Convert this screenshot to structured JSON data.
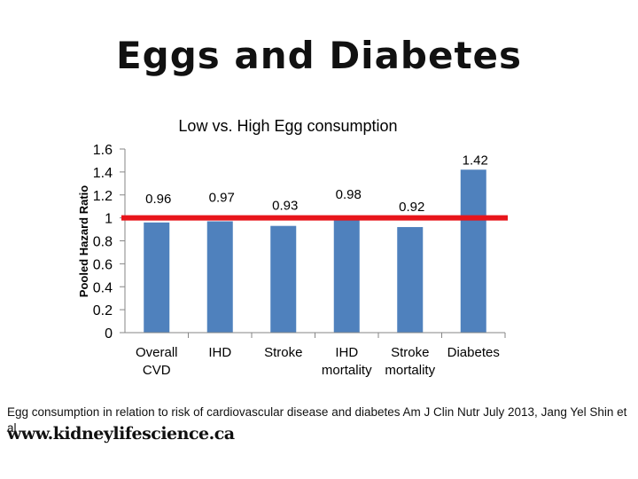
{
  "slide": {
    "title": "Eggs and Diabetes",
    "caption": "Egg consumption in relation to risk of cardiovascular disease and diabetes Am J Clin Nutr July 2013, Jang Yel Shin et al",
    "footer_url": "www.kidneylifescience.ca"
  },
  "chart_data": {
    "type": "bar",
    "title": "Low vs. High Egg consumption",
    "ylabel": "Pooled Hazard Ratio",
    "xlabel": "",
    "ylim": [
      0,
      1.6
    ],
    "yticks": [
      "0",
      "0.2",
      "0.4",
      "0.6",
      "0.8",
      "1",
      "1.2",
      "1.4",
      "1.6"
    ],
    "categories": [
      [
        "Overall",
        "CVD"
      ],
      [
        "IHD"
      ],
      [
        "Stroke"
      ],
      [
        "IHD",
        "mortality"
      ],
      [
        "Stroke",
        "mortality"
      ],
      [
        "Diabetes"
      ]
    ],
    "values": [
      0.96,
      0.97,
      0.93,
      0.98,
      0.92,
      1.42
    ],
    "value_labels": [
      "0.96",
      "0.97",
      "0.93",
      "0.98",
      "0.92",
      "1.42"
    ],
    "reference_line": 1,
    "colors": {
      "bar": "#4f81bd",
      "reference_line": "#e8151b"
    },
    "grid": false,
    "legend": "none"
  }
}
